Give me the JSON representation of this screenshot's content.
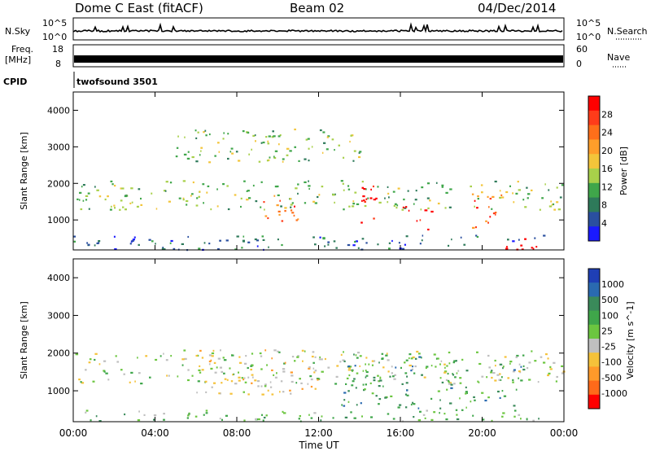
{
  "header": {
    "title": "Dome C East (fitACF)",
    "beam": "Beam 02",
    "date": "04/Dec/2014"
  },
  "strips": {
    "nsky_label": "N.Sky",
    "nsky_tick_top": "10^5",
    "nsky_tick_bottom": "10^0",
    "nsearch_label": "N.Search",
    "nsearch_tick_top": "10^5",
    "nsearch_tick_bottom": "10^0",
    "freq_label_1": "Freq.",
    "freq_label_2": "[MHz]",
    "freq_tick_top": "18",
    "freq_tick_bottom": "8",
    "nave_label": "Nave",
    "nave_tick_top": "60",
    "nave_tick_bottom": "0",
    "cpid_label": "CPID",
    "cpid_value": "twofsound 3501"
  },
  "chart_data": [
    {
      "type": "heatmap",
      "name": "power-panel",
      "ylabel": "Slant Range [km]",
      "xlabel": "",
      "ylim": [
        180,
        4500
      ],
      "xlim": [
        0,
        24
      ],
      "yticks": [
        1000,
        2000,
        3000,
        4000
      ],
      "colorbar": {
        "label": "Power [dB]",
        "ticks": [
          "28",
          "24",
          "20",
          "16",
          "12",
          "8",
          "4"
        ],
        "colors": [
          "#ff0000",
          "#ff3c1a",
          "#ff6f1a",
          "#ff9e2a",
          "#f3c53a",
          "#a8d04a",
          "#3fa64a",
          "#2e7a5a",
          "#2a4fa0",
          "#1a1aff"
        ]
      },
      "approx_features": [
        {
          "t0": 0,
          "t1": 24,
          "r0": 1300,
          "r1": 2100,
          "level": "12"
        },
        {
          "t0": 0,
          "t1": 24,
          "r0": 200,
          "r1": 600,
          "level": "8"
        },
        {
          "t0": 5,
          "t1": 14,
          "r0": 2600,
          "r1": 3500,
          "level": "12"
        },
        {
          "t0": 9,
          "t1": 11,
          "r0": 900,
          "r1": 1700,
          "level": "24"
        },
        {
          "t0": 14,
          "t1": 15,
          "r0": 900,
          "r1": 2000,
          "level": "28"
        },
        {
          "t0": 16,
          "t1": 17.5,
          "r0": 700,
          "r1": 1400,
          "level": "28"
        },
        {
          "t0": 19,
          "t1": 21,
          "r0": 800,
          "r1": 1800,
          "level": "24"
        },
        {
          "t0": 21,
          "t1": 23,
          "r0": 200,
          "r1": 500,
          "level": "28"
        }
      ]
    },
    {
      "type": "heatmap",
      "name": "velocity-panel",
      "ylabel": "Slant Range [km]",
      "xlabel": "Time UT",
      "ylim": [
        180,
        4500
      ],
      "xlim": [
        0,
        24
      ],
      "yticks": [
        1000,
        2000,
        3000,
        4000
      ],
      "xticks": [
        "00:00",
        "04:00",
        "08:00",
        "12:00",
        "16:00",
        "20:00",
        "00:00"
      ],
      "colorbar": {
        "label": "Velocity [m s^-1]",
        "ticks": [
          "1000",
          "500",
          "100",
          "25",
          "-25",
          "-100",
          "-500",
          "-1000"
        ],
        "colors": [
          "#1f3fb5",
          "#2a6ab0",
          "#3a8a5a",
          "#3fa64a",
          "#6cc640",
          "#bfbfbf",
          "#f5c23a",
          "#ff9a2a",
          "#ff6a1a",
          "#ff0000"
        ]
      },
      "approx_features": [
        {
          "t0": 0,
          "t1": 24,
          "r0": 1200,
          "r1": 2100,
          "level": "-25"
        },
        {
          "t0": 6,
          "t1": 12,
          "r0": 900,
          "r1": 2100,
          "level": "-100"
        },
        {
          "t0": 13,
          "t1": 22,
          "r0": 500,
          "r1": 2000,
          "level": "100"
        },
        {
          "t0": 0,
          "t1": 24,
          "r0": 200,
          "r1": 500,
          "level": "25"
        }
      ]
    }
  ],
  "colors": {
    "frame": "#000000",
    "background": "#ffffff"
  }
}
